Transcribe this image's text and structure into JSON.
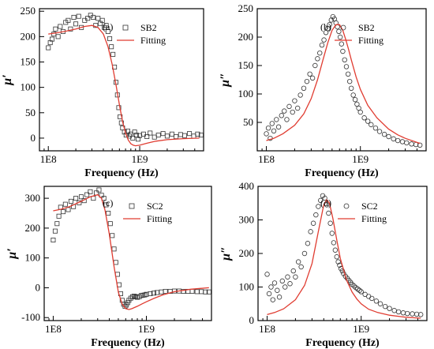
{
  "colors": {
    "data": "#333333",
    "fit": "#e03c31",
    "axis": "#000000"
  },
  "chart_data": [
    {
      "type": "scatter",
      "panel": "(a)",
      "xlabel": "Frequency (Hz)",
      "ylabel": "μ′",
      "xscale": "log",
      "xlim": [
        80000000,
        5000000000
      ],
      "ylim": [
        -25,
        255
      ],
      "xticks": [
        100000000,
        1000000000
      ],
      "xtick_labels": [
        "1E8",
        "1E9"
      ],
      "yticks": [
        0,
        50,
        100,
        150,
        200,
        250
      ],
      "ytick_labels": [
        "0",
        "50",
        "100",
        "150",
        "200",
        "250"
      ],
      "legend_position": "top-right",
      "series": [
        {
          "name": "SB2",
          "marker": "square",
          "x": [
            100000000.0,
            105000000.0,
            110000000.0,
            115000000.0,
            120000000.0,
            128000000.0,
            135000000.0,
            145000000.0,
            155000000.0,
            165000000.0,
            175000000.0,
            190000000.0,
            200000000.0,
            215000000.0,
            230000000.0,
            250000000.0,
            270000000.0,
            290000000.0,
            310000000.0,
            330000000.0,
            350000000.0,
            370000000.0,
            390000000.0,
            410000000.0,
            430000000.0,
            450000000.0,
            470000000.0,
            490000000.0,
            510000000.0,
            530000000.0,
            550000000.0,
            570000000.0,
            590000000.0,
            610000000.0,
            630000000.0,
            650000000.0,
            680000000.0,
            710000000.0,
            740000000.0,
            770000000.0,
            800000000.0,
            840000000.0,
            880000000.0,
            920000000.0,
            960000000.0,
            1000000000.0,
            1100000000.0,
            1200000000.0,
            1300000000.0,
            1450000000.0,
            1600000000.0,
            1800000000.0,
            2000000000.0,
            2250000000.0,
            2500000000.0,
            2800000000.0,
            3100000000.0,
            3500000000.0,
            3900000000.0,
            4300000000.0,
            4700000000.0
          ],
          "y": [
            178,
            188,
            195,
            205,
            215,
            200,
            220,
            210,
            228,
            232,
            215,
            238,
            225,
            240,
            218,
            232,
            236,
            242,
            238,
            222,
            236,
            226,
            232,
            218,
            222,
            210,
            196,
            180,
            165,
            140,
            110,
            85,
            60,
            42,
            30,
            20,
            12,
            6,
            14,
            4,
            8,
            0,
            12,
            6,
            -2,
            5,
            8,
            3,
            10,
            2,
            6,
            9,
            4,
            8,
            3,
            7,
            5,
            9,
            4,
            8,
            6
          ]
        },
        {
          "name": "Fitting",
          "line": true,
          "x": [
            100000000.0,
            120000000.0,
            150000000.0,
            200000000.0,
            250000000.0,
            300000000.0,
            350000000.0,
            400000000.0,
            450000000.0,
            500000000.0,
            550000000.0,
            600000000.0,
            650000000.0,
            700000000.0,
            750000000.0,
            800000000.0,
            850000000.0,
            900000000.0,
            1000000000.0,
            1200000000.0,
            1500000000.0,
            2000000000.0,
            3000000000.0,
            4500000000.0
          ],
          "y": [
            205,
            207,
            210,
            215,
            220,
            222,
            218,
            205,
            180,
            145,
            105,
            65,
            32,
            10,
            -4,
            -11,
            -14,
            -15,
            -14,
            -10,
            -6,
            -3,
            -1,
            0
          ]
        }
      ]
    },
    {
      "type": "scatter",
      "panel": "(b)",
      "xlabel": "Frequency (Hz)",
      "ylabel": "μ″",
      "xscale": "log",
      "xlim": [
        80000000,
        5000000000
      ],
      "ylim": [
        0,
        250
      ],
      "xticks": [
        100000000,
        1000000000
      ],
      "xtick_labels": [
        "1E8",
        "1E9"
      ],
      "yticks": [
        50,
        100,
        150,
        200,
        250
      ],
      "ytick_labels": [
        "50",
        "100",
        "150",
        "200",
        "250"
      ],
      "legend_position": "top-right",
      "series": [
        {
          "name": "SB2",
          "marker": "circle",
          "x": [
            100000000.0,
            105000000.0,
            110000000.0,
            115000000.0,
            120000000.0,
            128000000.0,
            135000000.0,
            145000000.0,
            155000000.0,
            165000000.0,
            175000000.0,
            190000000.0,
            200000000.0,
            215000000.0,
            230000000.0,
            250000000.0,
            270000000.0,
            290000000.0,
            310000000.0,
            330000000.0,
            350000000.0,
            370000000.0,
            390000000.0,
            410000000.0,
            430000000.0,
            450000000.0,
            470000000.0,
            490000000.0,
            510000000.0,
            530000000.0,
            550000000.0,
            570000000.0,
            590000000.0,
            610000000.0,
            630000000.0,
            650000000.0,
            680000000.0,
            710000000.0,
            740000000.0,
            770000000.0,
            800000000.0,
            840000000.0,
            880000000.0,
            920000000.0,
            960000000.0,
            1000000000.0,
            1100000000.0,
            1200000000.0,
            1300000000.0,
            1450000000.0,
            1600000000.0,
            1800000000.0,
            2000000000.0,
            2250000000.0,
            2500000000.0,
            2800000000.0,
            3100000000.0,
            3500000000.0,
            3900000000.0,
            4300000000.0
          ],
          "y": [
            30,
            40,
            22,
            48,
            35,
            55,
            42,
            62,
            70,
            55,
            78,
            68,
            88,
            75,
            98,
            110,
            122,
            135,
            128,
            150,
            162,
            172,
            186,
            195,
            208,
            215,
            222,
            230,
            236,
            232,
            225,
            218,
            210,
            200,
            188,
            175,
            160,
            148,
            135,
            122,
            110,
            98,
            90,
            82,
            75,
            68,
            58,
            52,
            46,
            40,
            34,
            29,
            25,
            21,
            18,
            16,
            14,
            12,
            11,
            10
          ]
        },
        {
          "name": "Fitting",
          "line": true,
          "x": [
            100000000.0,
            120000000.0,
            150000000.0,
            200000000.0,
            250000000.0,
            300000000.0,
            350000000.0,
            400000000.0,
            450000000.0,
            500000000.0,
            550000000.0,
            600000000.0,
            650000000.0,
            700000000.0,
            750000000.0,
            800000000.0,
            900000000.0,
            1000000000.0,
            1200000000.0,
            1500000000.0,
            2000000000.0,
            2500000000.0,
            3000000000.0,
            4300000000.0
          ],
          "y": [
            18,
            22,
            30,
            45,
            65,
            92,
            125,
            160,
            190,
            212,
            222,
            222,
            212,
            195,
            178,
            160,
            130,
            108,
            80,
            58,
            38,
            28,
            22,
            13
          ]
        }
      ]
    },
    {
      "type": "scatter",
      "panel": "(c)",
      "xlabel": "Frequency (Hz)",
      "ylabel": "μ′",
      "xscale": "log",
      "xlim": [
        80000000,
        5000000000
      ],
      "ylim": [
        -110,
        340
      ],
      "xticks": [
        100000000,
        1000000000
      ],
      "xtick_labels": [
        "1E8",
        "1E9"
      ],
      "yticks": [
        -100,
        0,
        100,
        200,
        300
      ],
      "ytick_labels": [
        "-100",
        "0",
        "100",
        "200",
        "300"
      ],
      "legend_position": "top-right",
      "series": [
        {
          "name": "SC2",
          "marker": "square",
          "x": [
            100000000.0,
            105000000.0,
            110000000.0,
            115000000.0,
            120000000.0,
            128000000.0,
            135000000.0,
            145000000.0,
            155000000.0,
            165000000.0,
            175000000.0,
            190000000.0,
            200000000.0,
            215000000.0,
            230000000.0,
            250000000.0,
            270000000.0,
            290000000.0,
            310000000.0,
            330000000.0,
            350000000.0,
            370000000.0,
            390000000.0,
            410000000.0,
            430000000.0,
            450000000.0,
            470000000.0,
            490000000.0,
            510000000.0,
            530000000.0,
            550000000.0,
            570000000.0,
            590000000.0,
            610000000.0,
            630000000.0,
            650000000.0,
            680000000.0,
            710000000.0,
            740000000.0,
            770000000.0,
            800000000.0,
            840000000.0,
            880000000.0,
            920000000.0,
            960000000.0,
            1000000000.0,
            1100000000.0,
            1200000000.0,
            1300000000.0,
            1450000000.0,
            1600000000.0,
            1800000000.0,
            2000000000.0,
            2250000000.0,
            2500000000.0,
            2800000000.0,
            3100000000.0,
            3500000000.0,
            3900000000.0,
            4300000000.0,
            4700000000.0
          ],
          "y": [
            160,
            190,
            215,
            240,
            270,
            255,
            280,
            262,
            290,
            272,
            300,
            285,
            305,
            292,
            312,
            322,
            300,
            318,
            328,
            310,
            300,
            278,
            250,
            215,
            175,
            130,
            85,
            45,
            10,
            -20,
            -42,
            -55,
            -62,
            -58,
            -50,
            -42,
            -35,
            -30,
            -28,
            -30,
            -32,
            -30,
            -26,
            -25,
            -24,
            -22,
            -20,
            -18,
            -16,
            -14,
            -12,
            -12,
            -11,
            -11,
            -12,
            -12,
            -12,
            -13,
            -13,
            -14,
            -14
          ]
        },
        {
          "name": "Fitting",
          "line": true,
          "x": [
            100000000.0,
            120000000.0,
            150000000.0,
            200000000.0,
            250000000.0,
            300000000.0,
            330000000.0,
            360000000.0,
            400000000.0,
            450000000.0,
            500000000.0,
            550000000.0,
            600000000.0,
            650000000.0,
            700000000.0,
            800000000.0,
            900000000.0,
            1000000000.0,
            1200000000.0,
            1500000000.0,
            2000000000.0,
            3000000000.0,
            4700000000.0
          ],
          "y": [
            258,
            263,
            272,
            290,
            305,
            312,
            300,
            260,
            180,
            70,
            -15,
            -55,
            -70,
            -73,
            -70,
            -62,
            -54,
            -47,
            -36,
            -24,
            -13,
            -5,
            0
          ]
        }
      ]
    },
    {
      "type": "scatter",
      "panel": "(d)",
      "xlabel": "Frequency (Hz)",
      "ylabel": "μ″",
      "xscale": "log",
      "xlim": [
        80000000,
        5000000000
      ],
      "ylim": [
        0,
        400
      ],
      "xticks": [
        100000000,
        1000000000
      ],
      "xtick_labels": [
        "1E8",
        "1E9"
      ],
      "yticks": [
        0,
        100,
        200,
        300,
        400
      ],
      "ytick_labels": [
        "0",
        "100",
        "200",
        "300",
        "400"
      ],
      "legend_position": "top-right",
      "series": [
        {
          "name": "SC2",
          "marker": "circle",
          "x": [
            100000000.0,
            105000000.0,
            110000000.0,
            115000000.0,
            120000000.0,
            128000000.0,
            135000000.0,
            145000000.0,
            155000000.0,
            165000000.0,
            175000000.0,
            190000000.0,
            200000000.0,
            215000000.0,
            230000000.0,
            250000000.0,
            270000000.0,
            290000000.0,
            310000000.0,
            330000000.0,
            350000000.0,
            370000000.0,
            390000000.0,
            410000000.0,
            430000000.0,
            450000000.0,
            470000000.0,
            490000000.0,
            510000000.0,
            530000000.0,
            550000000.0,
            570000000.0,
            590000000.0,
            610000000.0,
            630000000.0,
            650000000.0,
            680000000.0,
            710000000.0,
            740000000.0,
            770000000.0,
            800000000.0,
            840000000.0,
            880000000.0,
            920000000.0,
            960000000.0,
            1000000000.0,
            1100000000.0,
            1200000000.0,
            1300000000.0,
            1450000000.0,
            1600000000.0,
            1800000000.0,
            2000000000.0,
            2250000000.0,
            2500000000.0,
            2800000000.0,
            3100000000.0,
            3500000000.0,
            3900000000.0,
            4300000000.0
          ],
          "y": [
            138,
            80,
            100,
            62,
            112,
            90,
            70,
            118,
            100,
            130,
            110,
            148,
            130,
            175,
            160,
            200,
            230,
            265,
            290,
            315,
            340,
            358,
            372,
            365,
            345,
            320,
            290,
            260,
            232,
            210,
            190,
            175,
            165,
            155,
            148,
            140,
            132,
            126,
            120,
            114,
            108,
            103,
            98,
            94,
            90,
            86,
            78,
            72,
            66,
            58,
            50,
            42,
            36,
            30,
            26,
            23,
            21,
            20,
            19,
            18
          ]
        },
        {
          "name": "Fitting",
          "line": true,
          "x": [
            100000000.0,
            120000000.0,
            150000000.0,
            200000000.0,
            250000000.0,
            300000000.0,
            350000000.0,
            400000000.0,
            430000000.0,
            460000000.0,
            500000000.0,
            550000000.0,
            600000000.0,
            700000000.0,
            800000000.0,
            900000000.0,
            1000000000.0,
            1200000000.0,
            1500000000.0,
            2000000000.0,
            3000000000.0,
            4300000000.0
          ],
          "y": [
            18,
            24,
            35,
            62,
            105,
            170,
            265,
            345,
            360,
            350,
            305,
            240,
            185,
            120,
            85,
            64,
            50,
            34,
            24,
            16,
            10,
            7
          ]
        }
      ]
    }
  ]
}
